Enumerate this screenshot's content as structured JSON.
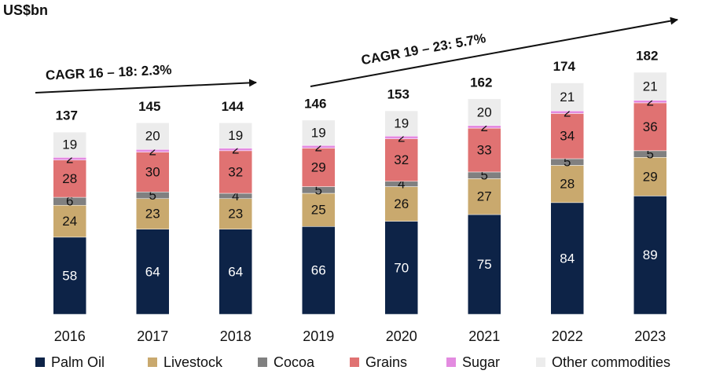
{
  "chart_data": {
    "type": "stacked_bar",
    "unit_label": "US$bn",
    "categories": [
      "2016",
      "2017",
      "2018",
      "2019",
      "2020",
      "2021",
      "2022",
      "2023"
    ],
    "series": [
      {
        "name": "Palm Oil",
        "color": "#0d2347",
        "values": [
          58,
          64,
          64,
          66,
          70,
          75,
          84,
          89
        ]
      },
      {
        "name": "Livestock",
        "color": "#c9a96e",
        "values": [
          24,
          23,
          23,
          25,
          26,
          27,
          28,
          29
        ]
      },
      {
        "name": "Cocoa",
        "color": "#808080",
        "values": [
          6,
          5,
          4,
          5,
          4,
          5,
          5,
          5
        ]
      },
      {
        "name": "Grains",
        "color": "#e07272",
        "values": [
          28,
          30,
          32,
          29,
          32,
          33,
          34,
          36
        ]
      },
      {
        "name": "Sugar",
        "color": "#e38be0",
        "values": [
          2,
          2,
          2,
          2,
          2,
          2,
          2,
          2
        ]
      },
      {
        "name": "Other commodities",
        "color": "#ececec",
        "values": [
          19,
          20,
          19,
          19,
          19,
          20,
          21,
          21
        ]
      }
    ],
    "totals": [
      137,
      145,
      144,
      146,
      153,
      162,
      174,
      182
    ],
    "annotations": [
      "CAGR 16 – 18: 2.3%",
      "CAGR 19 – 23: 5.7%"
    ]
  }
}
